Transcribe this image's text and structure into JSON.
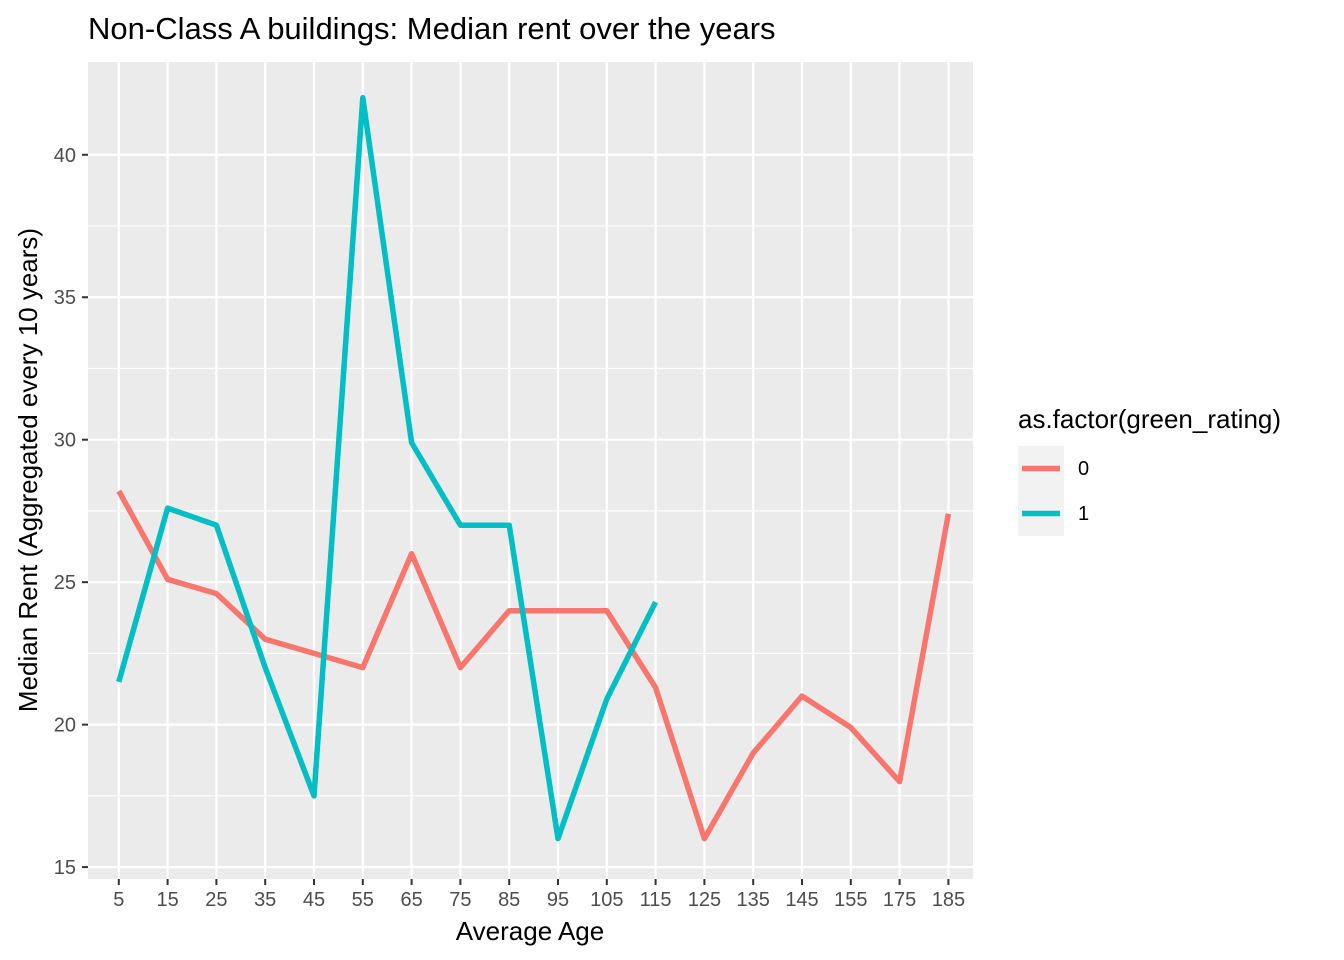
{
  "chart_data": {
    "type": "line",
    "title": "Non-Class A buildings: Median rent over the years",
    "xlabel": "Average Age",
    "ylabel": "Median Rent (Aggregated every 10 years)",
    "categories": [
      "5",
      "15",
      "25",
      "35",
      "45",
      "55",
      "65",
      "75",
      "85",
      "95",
      "105",
      "115",
      "125",
      "135",
      "145",
      "155",
      "175",
      "185"
    ],
    "ylim": [
      14.8,
      43.0
    ],
    "yticks": [
      15,
      20,
      25,
      30,
      35,
      40
    ],
    "grid": true,
    "legend_title": "as.factor(green_rating)",
    "legend_position": "right",
    "series": [
      {
        "name": "0",
        "color": "#F8766D",
        "values": [
          28.2,
          25.1,
          24.6,
          23.0,
          22.5,
          22.0,
          26.0,
          22.0,
          24.0,
          24.0,
          24.0,
          21.3,
          16.0,
          19.0,
          21.0,
          19.9,
          18.0,
          27.4
        ]
      },
      {
        "name": "1",
        "color": "#00BFC4",
        "values": [
          21.5,
          27.6,
          27.0,
          22.0,
          17.5,
          42.0,
          29.9,
          27.0,
          27.0,
          16.0,
          20.9,
          24.3,
          null,
          null,
          null,
          null,
          null,
          null
        ]
      }
    ]
  }
}
